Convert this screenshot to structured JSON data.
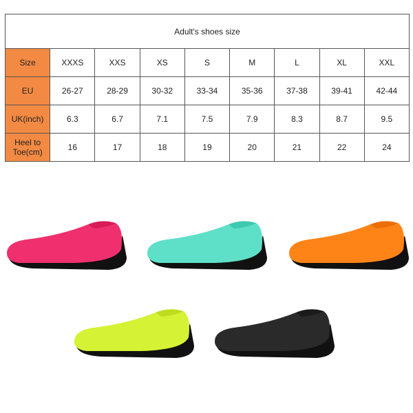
{
  "table": {
    "title": "Adult's shoes size",
    "rows": [
      {
        "label": "Size",
        "values": [
          "XXXS",
          "XXS",
          "XS",
          "S",
          "M",
          "L",
          "XL",
          "XXL"
        ]
      },
      {
        "label": "EU",
        "values": [
          "26-27",
          "28-29",
          "30-32",
          "33-34",
          "35-36",
          "37-38",
          "39-41",
          "42-44"
        ]
      },
      {
        "label": "UK(inch)",
        "values": [
          "6.3",
          "6.7",
          "7.1",
          "7.5",
          "7.9",
          "8.3",
          "8.7",
          "9.5"
        ]
      },
      {
        "label": "Heel to Toe(cm)",
        "values": [
          "16",
          "17",
          "18",
          "19",
          "20",
          "21",
          "22",
          "24"
        ]
      }
    ],
    "header_color": "#f28a43"
  },
  "shoes": [
    {
      "color": "#f0306e",
      "shade": "#d81c58"
    },
    {
      "color": "#5ee0c8",
      "shade": "#3fc9b0"
    },
    {
      "color": "#ff8418",
      "shade": "#ec6f05"
    },
    {
      "color": "#d6f234",
      "shade": "#bfdc1d"
    },
    {
      "color": "#2a2a2a",
      "shade": "#1a1a1a"
    }
  ]
}
